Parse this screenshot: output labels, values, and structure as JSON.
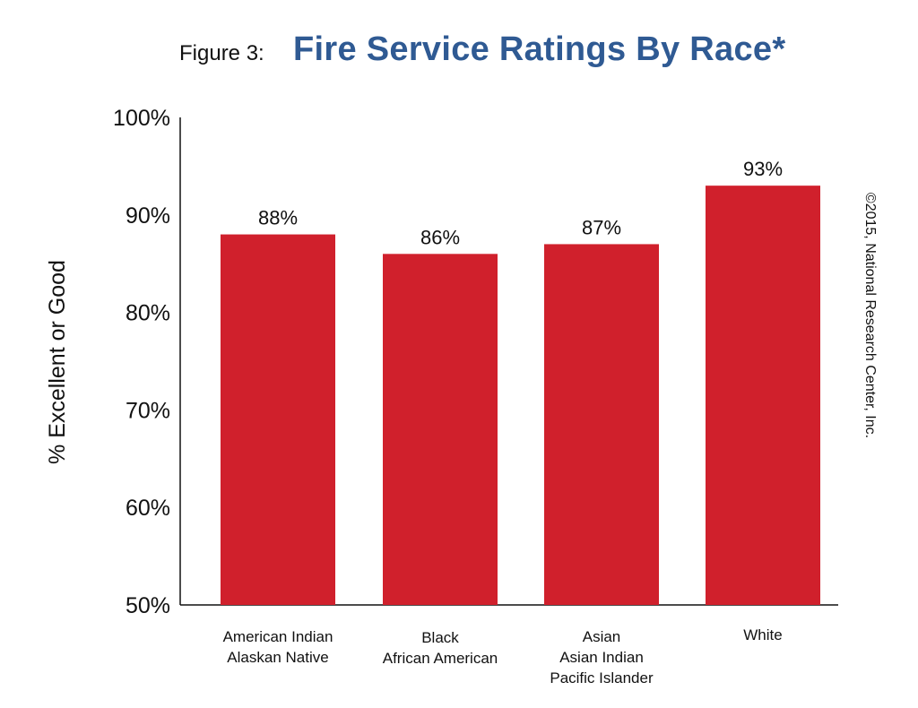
{
  "figure_prefix": "Figure 3:",
  "copyright": "©2015, National Research Center, Inc.",
  "chart_data": {
    "type": "bar",
    "title": "Fire Service Ratings By Race*",
    "ylabel": "% Excellent or Good",
    "xlabel": "",
    "ylim": [
      50,
      100
    ],
    "yticks": [
      50,
      60,
      70,
      80,
      90,
      100
    ],
    "ytick_labels": [
      "50%",
      "60%",
      "70%",
      "80%",
      "90%",
      "100%"
    ],
    "categories": [
      [
        "American Indian",
        "Alaskan Native"
      ],
      [
        "Black",
        "African American"
      ],
      [
        "Asian",
        "Asian Indian",
        "Pacific Islander"
      ],
      [
        "White"
      ]
    ],
    "values": [
      88,
      86,
      87,
      93
    ],
    "value_labels": [
      "88%",
      "86%",
      "87%",
      "93%"
    ],
    "bar_color": "#d0202c",
    "title_color": "#2f5a93",
    "grid": false
  }
}
